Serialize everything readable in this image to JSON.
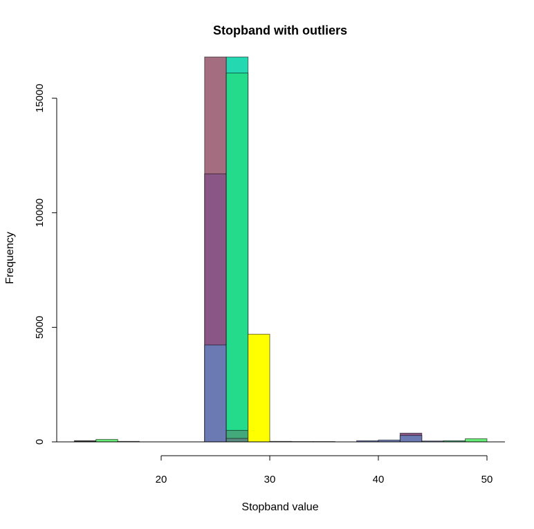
{
  "chart_data": {
    "type": "bar",
    "title": "Stopband with outliers",
    "xlabel": "Stopband value",
    "ylabel": "Frequency",
    "xlim": [
      12,
      50
    ],
    "ylim": [
      0,
      16800
    ],
    "x_ticks": [
      20,
      30,
      40,
      50
    ],
    "y_ticks": [
      0,
      5000,
      10000,
      15000
    ],
    "bin_width": 2,
    "bars": [
      {
        "x0": 12,
        "x1": 14,
        "y": 50,
        "color": "#333333"
      },
      {
        "x0": 14,
        "x1": 16,
        "y": 110,
        "color": "#66ee77"
      },
      {
        "x0": 16,
        "x1": 18,
        "y": 20,
        "color": "#333333"
      },
      {
        "x0": 24,
        "x1": 26,
        "y": 16800,
        "color": "#a56d80"
      },
      {
        "x0": 24,
        "x1": 26,
        "y": 11700,
        "color": "#8a5686"
      },
      {
        "x0": 24,
        "x1": 26,
        "y": 4230,
        "color": "#6b7ab3"
      },
      {
        "x0": 26,
        "x1": 28,
        "y": 16800,
        "color": "#24d9b2"
      },
      {
        "x0": 26,
        "x1": 28,
        "y": 16100,
        "color": "#24db8c"
      },
      {
        "x0": 26,
        "x1": 28,
        "y": 500,
        "color": "#43a87a"
      },
      {
        "x0": 26,
        "x1": 28,
        "y": 150,
        "color": "#5a8a80"
      },
      {
        "x0": 28,
        "x1": 30,
        "y": 4700,
        "color": "#ffff00"
      },
      {
        "x0": 30,
        "x1": 32,
        "y": 20,
        "color": "#333333"
      },
      {
        "x0": 32,
        "x1": 34,
        "y": 15,
        "color": "#333333"
      },
      {
        "x0": 34,
        "x1": 36,
        "y": 15,
        "color": "#333333"
      },
      {
        "x0": 38,
        "x1": 40,
        "y": 50,
        "color": "#6b7ab3"
      },
      {
        "x0": 40,
        "x1": 42,
        "y": 80,
        "color": "#6b7ab3"
      },
      {
        "x0": 42,
        "x1": 44,
        "y": 380,
        "color": "#8a5686"
      },
      {
        "x0": 42,
        "x1": 44,
        "y": 280,
        "color": "#6b7ab3"
      },
      {
        "x0": 44,
        "x1": 46,
        "y": 40,
        "color": "#6b7ab3"
      },
      {
        "x0": 46,
        "x1": 48,
        "y": 50,
        "color": "#43a87a"
      },
      {
        "x0": 48,
        "x1": 50,
        "y": 140,
        "color": "#66ee77"
      }
    ]
  }
}
